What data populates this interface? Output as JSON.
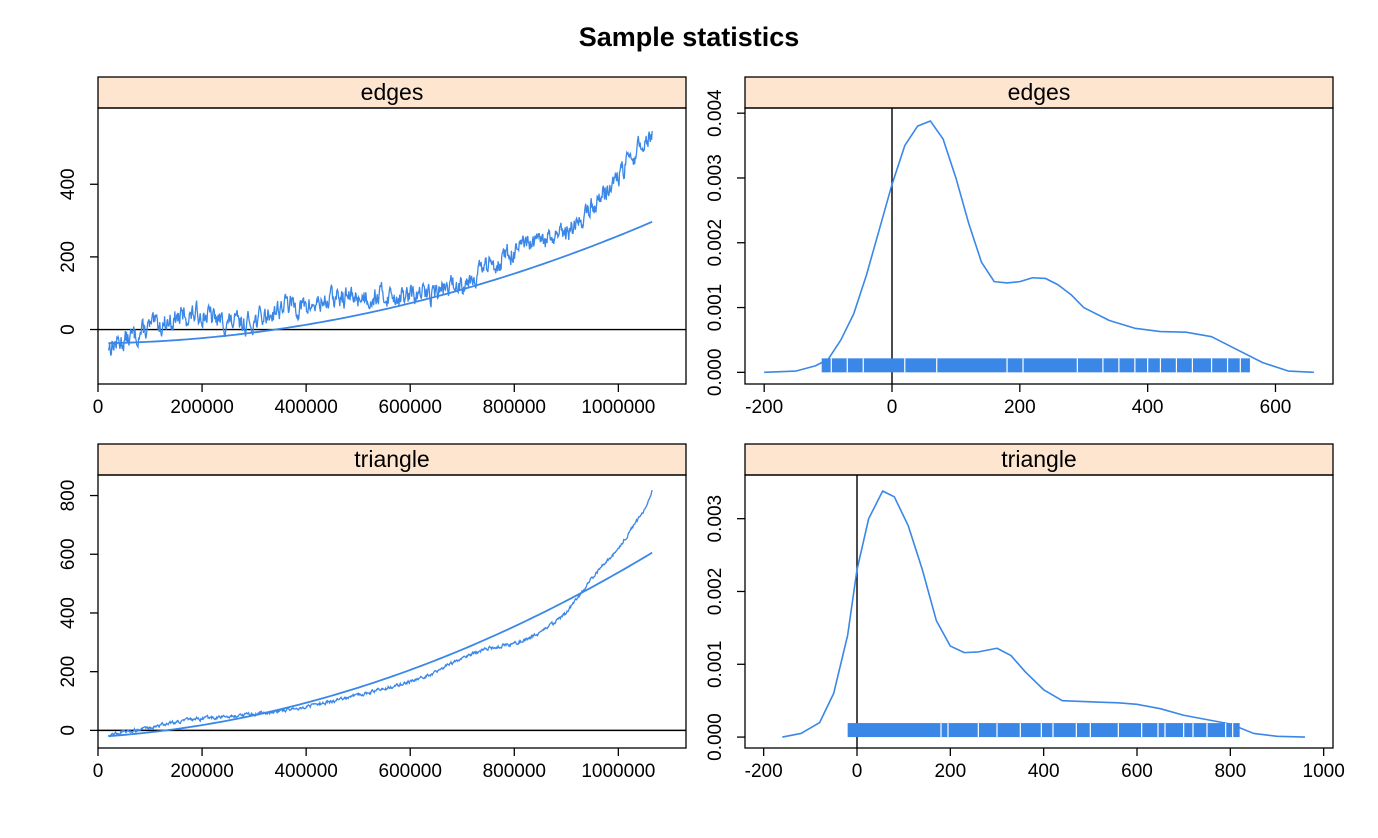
{
  "title": "Sample statistics",
  "colors": {
    "line": "#3a87e8",
    "strip": "#fde5cf",
    "reference": "#000000"
  },
  "chart_data": [
    {
      "type": "line",
      "panel": "trace",
      "strip": "edges",
      "xlim": [
        0,
        1130000
      ],
      "ylim": [
        -150,
        610
      ],
      "xticks": [
        0,
        200000,
        400000,
        600000,
        800000,
        1000000
      ],
      "xtick_labels": [
        "0",
        "200000",
        "400000",
        "600000",
        "800000",
        "1000000"
      ],
      "yticks": [
        0,
        200,
        400
      ],
      "ytick_labels": [
        "0",
        "200",
        "400"
      ],
      "hline": 0,
      "trace": {
        "x_range": [
          20000,
          1065000
        ],
        "knots": [
          [
            20000,
            -45
          ],
          [
            60000,
            -25
          ],
          [
            100000,
            5
          ],
          [
            150000,
            30
          ],
          [
            200000,
            45
          ],
          [
            240000,
            20
          ],
          [
            280000,
            15
          ],
          [
            320000,
            35
          ],
          [
            360000,
            70
          ],
          [
            400000,
            60
          ],
          [
            450000,
            85
          ],
          [
            500000,
            90
          ],
          [
            550000,
            95
          ],
          [
            600000,
            90
          ],
          [
            650000,
            105
          ],
          [
            700000,
            130
          ],
          [
            750000,
            175
          ],
          [
            800000,
            215
          ],
          [
            850000,
            240
          ],
          [
            900000,
            260
          ],
          [
            950000,
            340
          ],
          [
            1000000,
            420
          ],
          [
            1040000,
            500
          ],
          [
            1065000,
            540
          ]
        ],
        "noise": 24
      },
      "fit": {
        "x": [
          20000,
          1065000
        ],
        "coef": [
          -38,
          1.6e-05,
          2.8e-10
        ]
      }
    },
    {
      "type": "area",
      "panel": "density",
      "strip": "edges",
      "xlim": [
        -230,
        690
      ],
      "ylim": [
        -0.00018,
        0.00408
      ],
      "xticks": [
        -200,
        0,
        200,
        400,
        600
      ],
      "xtick_labels": [
        "-200",
        "0",
        "200",
        "400",
        "600"
      ],
      "yticks": [
        0,
        0.001,
        0.002,
        0.003,
        0.004
      ],
      "ytick_labels": [
        "0.000",
        "0.001",
        "0.002",
        "0.003",
        "0.004"
      ],
      "vline": 0,
      "density": {
        "x": [
          -200,
          -150,
          -120,
          -100,
          -80,
          -60,
          -40,
          -20,
          0,
          20,
          40,
          60,
          80,
          100,
          120,
          140,
          160,
          180,
          200,
          220,
          240,
          260,
          280,
          300,
          340,
          380,
          420,
          460,
          500,
          540,
          580,
          620,
          660
        ],
        "y": [
          0,
          2e-05,
          0.0001,
          0.0002,
          0.0005,
          0.0009,
          0.0015,
          0.0022,
          0.0029,
          0.0035,
          0.0038,
          0.00388,
          0.0036,
          0.003,
          0.0023,
          0.0017,
          0.0014,
          0.00138,
          0.0014,
          0.00146,
          0.00145,
          0.00135,
          0.0012,
          0.001,
          0.0008,
          0.00068,
          0.00063,
          0.00062,
          0.00055,
          0.00035,
          0.00015,
          2e-05,
          0
        ]
      },
      "rug": {
        "range": [
          -110,
          560
        ],
        "gaps": [
          -95,
          -70,
          -45,
          20,
          70,
          180,
          205,
          290,
          330,
          355,
          380,
          400,
          420,
          445,
          470,
          500,
          525,
          545
        ]
      }
    },
    {
      "type": "line",
      "panel": "trace",
      "strip": "triangle",
      "xlim": [
        0,
        1130000
      ],
      "ylim": [
        -60,
        870
      ],
      "xticks": [
        0,
        200000,
        400000,
        600000,
        800000,
        1000000
      ],
      "xtick_labels": [
        "0",
        "200000",
        "400000",
        "600000",
        "800000",
        "1000000"
      ],
      "yticks": [
        0,
        200,
        400,
        600,
        800
      ],
      "ytick_labels": [
        "0",
        "200",
        "400",
        "600",
        "800"
      ],
      "hline": 0,
      "trace": {
        "x_range": [
          20000,
          1065000
        ],
        "knots": [
          [
            20000,
            -15
          ],
          [
            100000,
            10
          ],
          [
            150000,
            30
          ],
          [
            200000,
            40
          ],
          [
            300000,
            55
          ],
          [
            400000,
            80
          ],
          [
            500000,
            120
          ],
          [
            600000,
            165
          ],
          [
            650000,
            200
          ],
          [
            700000,
            250
          ],
          [
            750000,
            280
          ],
          [
            800000,
            295
          ],
          [
            850000,
            330
          ],
          [
            900000,
            400
          ],
          [
            950000,
            520
          ],
          [
            1000000,
            620
          ],
          [
            1050000,
            750
          ],
          [
            1065000,
            815
          ]
        ],
        "noise": 5
      },
      "fit": {
        "x": [
          20000,
          1065000
        ],
        "coef": [
          -22,
          0.00011,
          4.5e-10
        ]
      }
    },
    {
      "type": "area",
      "panel": "density",
      "strip": "triangle",
      "xlim": [
        -240,
        1020
      ],
      "ylim": [
        -0.00015,
        0.0036
      ],
      "xticks": [
        -200,
        0,
        200,
        400,
        600,
        800,
        1000
      ],
      "xtick_labels": [
        "-200",
        "0",
        "200",
        "400",
        "600",
        "800",
        "1000"
      ],
      "yticks": [
        0,
        0.001,
        0.002,
        0.003
      ],
      "ytick_labels": [
        "0.000",
        "0.001",
        "0.002",
        "0.003"
      ],
      "vline": 0,
      "density": {
        "x": [
          -160,
          -120,
          -80,
          -50,
          -20,
          0,
          25,
          55,
          80,
          110,
          140,
          170,
          200,
          230,
          260,
          300,
          330,
          360,
          400,
          440,
          480,
          520,
          560,
          600,
          650,
          700,
          750,
          800,
          850,
          900,
          960
        ],
        "y": [
          0,
          5e-05,
          0.0002,
          0.0006,
          0.0014,
          0.0023,
          0.003,
          0.00338,
          0.0033,
          0.0029,
          0.0023,
          0.0016,
          0.00125,
          0.00116,
          0.00117,
          0.00122,
          0.00112,
          0.0009,
          0.00065,
          0.0005,
          0.00049,
          0.00048,
          0.00047,
          0.00045,
          0.00039,
          0.0003,
          0.00024,
          0.00018,
          5e-05,
          1e-05,
          0
        ]
      },
      "rug": {
        "range": [
          -20,
          820
        ],
        "gaps": [
          180,
          195,
          260,
          300,
          350,
          395,
          420,
          470,
          500,
          560,
          610,
          645,
          660,
          700,
          720,
          750,
          790,
          805
        ]
      }
    }
  ]
}
